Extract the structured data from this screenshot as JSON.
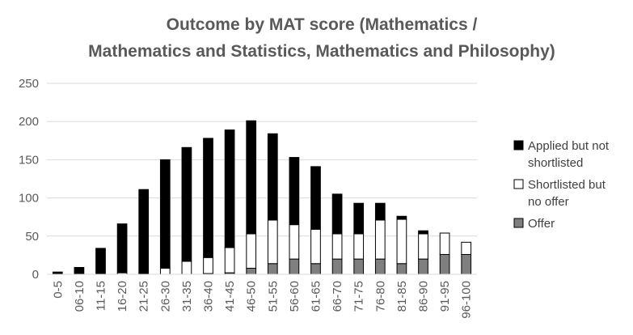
{
  "chart_data": {
    "type": "bar",
    "stacked": true,
    "title": "Outcome by MAT score (Mathematics /",
    "title_line2": "Mathematics and Statistics, Mathematics and Philosophy)",
    "xlabel": "",
    "ylabel": "",
    "ylim": [
      0,
      250
    ],
    "yticks": [
      0,
      50,
      100,
      150,
      200,
      250
    ],
    "grid": true,
    "legend_position": "right",
    "categories": [
      "0-5",
      "06-10",
      "11-15",
      "16-20",
      "21-25",
      "26-30",
      "31-35",
      "36-40",
      "41-45",
      "46-50",
      "51-55",
      "56-60",
      "61-65",
      "66-70",
      "71-75",
      "76-80",
      "81-85",
      "86-90",
      "91-95",
      "96-100"
    ],
    "series": [
      {
        "name": "Offer",
        "color": "#7f7f7f",
        "values": [
          0,
          0,
          0,
          0,
          0,
          0,
          0,
          1,
          2,
          8,
          14,
          20,
          14,
          20,
          20,
          20,
          14,
          20,
          26,
          26
        ]
      },
      {
        "name": "Shortlisted but no offer",
        "color": "#ffffff",
        "values": [
          0,
          0,
          0,
          2,
          1,
          8,
          17,
          21,
          33,
          45,
          57,
          45,
          45,
          33,
          33,
          51,
          58,
          33,
          28,
          16
        ]
      },
      {
        "name": "Applied but not shortlisted",
        "color": "#000000",
        "values": [
          3,
          9,
          34,
          64,
          110,
          142,
          149,
          156,
          154,
          148,
          113,
          88,
          82,
          52,
          40,
          22,
          4,
          4,
          0,
          0
        ]
      }
    ],
    "legend": [
      {
        "name": "Applied but not",
        "name2": "shortlisted",
        "series": 2
      },
      {
        "name": "Shortlisted but",
        "name2": "no offer",
        "series": 1
      },
      {
        "name": "Offer",
        "name2": "",
        "series": 0
      }
    ]
  }
}
